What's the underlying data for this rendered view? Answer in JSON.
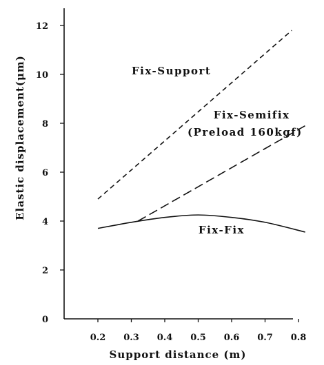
{
  "chart_data": {
    "type": "line",
    "xlabel": "Support distance (m)",
    "ylabel": "Elastic displacement(μm)",
    "xlim": [
      0.15,
      0.85
    ],
    "ylim": [
      0,
      12.5
    ],
    "x_ticks": [
      "0.2",
      "0.3",
      "0.4",
      "0.5",
      "0.6",
      "0.7",
      "0.8"
    ],
    "y_ticks": [
      "0",
      "2",
      "4",
      "6",
      "8",
      "10",
      "12"
    ],
    "grid": false,
    "series": [
      {
        "name": "Fix-Support",
        "style": "dashed",
        "x": [
          0.2,
          0.78
        ],
        "y": [
          4.9,
          11.8
        ]
      },
      {
        "name": "Fix-Semifix",
        "style": "long-dashed",
        "x": [
          0.32,
          0.82
        ],
        "y": [
          4.0,
          7.9
        ]
      },
      {
        "name": "Fix-Fix",
        "style": "solid",
        "x": [
          0.2,
          0.3,
          0.4,
          0.5,
          0.6,
          0.7,
          0.82
        ],
        "y": [
          3.7,
          3.95,
          4.15,
          4.25,
          4.15,
          3.95,
          3.55
        ]
      }
    ],
    "annotations": [
      {
        "text": "Fix-Support",
        "x": 0.42,
        "y": 10.0
      },
      {
        "text": "Fix-Semifix",
        "x": 0.66,
        "y": 8.2
      },
      {
        "text": "(Preload 160kgf)",
        "x": 0.64,
        "y": 7.5
      },
      {
        "text": "Fix-Fix",
        "x": 0.57,
        "y": 3.5
      }
    ]
  }
}
